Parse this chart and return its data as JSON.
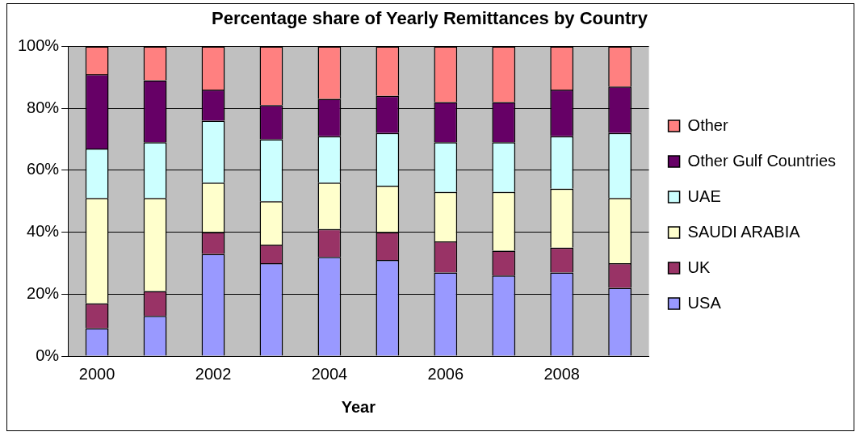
{
  "chart_data": {
    "type": "bar",
    "title": "Percentage share of Yearly Remittances by Country",
    "xlabel": "Year",
    "categories": [
      "2000",
      null,
      "2002",
      null,
      "2004",
      null,
      "2006",
      null,
      "2008",
      null
    ],
    "stacked": true,
    "ylim": [
      0,
      100
    ],
    "yticks": [
      {
        "value": 0,
        "label": "0%"
      },
      {
        "value": 20,
        "label": "20%"
      },
      {
        "value": 40,
        "label": "40%"
      },
      {
        "value": 60,
        "label": "60%"
      },
      {
        "value": 80,
        "label": "80%"
      },
      {
        "value": 100,
        "label": "100%"
      }
    ],
    "grid": "y",
    "legend": "right",
    "series": [
      {
        "name": "USA",
        "color": "#9999ff",
        "values": [
          9,
          13,
          33,
          30,
          32,
          31,
          27,
          26,
          27,
          22
        ]
      },
      {
        "name": "UK",
        "color": "#993366",
        "values": [
          8,
          8,
          7,
          6,
          9,
          9,
          10,
          8,
          8,
          8
        ]
      },
      {
        "name": "SAUDI ARABIA",
        "color": "#ffffcc",
        "values": [
          34,
          30,
          16,
          14,
          15,
          15,
          16,
          19,
          19,
          21
        ]
      },
      {
        "name": "UAE",
        "color": "#ccffff",
        "values": [
          16,
          18,
          20,
          20,
          15,
          17,
          16,
          16,
          17,
          21
        ]
      },
      {
        "name": "Other Gulf Countries",
        "color": "#660066",
        "values": [
          24,
          20,
          10,
          11,
          12,
          12,
          13,
          13,
          15,
          15
        ]
      },
      {
        "name": "Other",
        "color": "#ff8080",
        "values": [
          9,
          11,
          14,
          19,
          17,
          16,
          18,
          18,
          14,
          13
        ]
      }
    ]
  }
}
